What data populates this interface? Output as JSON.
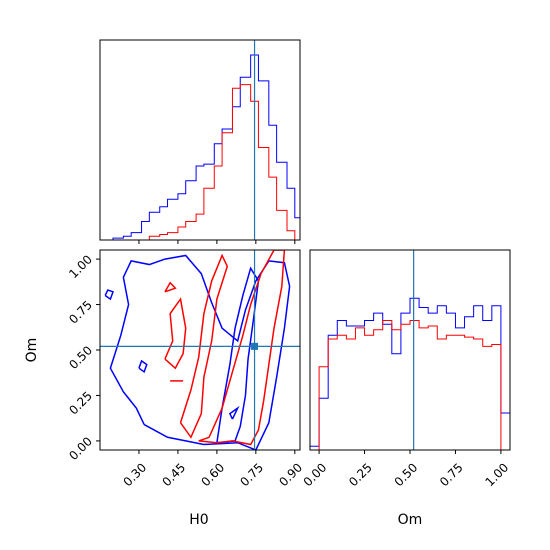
{
  "chart_data": [
    {
      "type": "histogram",
      "panel": "H0-marginal",
      "xlim": [
        0.15,
        0.92
      ],
      "truth": 0.745,
      "series": [
        {
          "name": "",
          "color": "#0000ff",
          "edges": [
            0.17,
            0.2,
            0.24,
            0.27,
            0.31,
            0.34,
            0.38,
            0.41,
            0.45,
            0.48,
            0.52,
            0.55,
            0.59,
            0.62,
            0.66,
            0.69,
            0.73,
            0.76,
            0.8,
            0.83,
            0.87,
            0.9,
            0.92
          ],
          "counts": [
            0.0,
            0.01,
            0.02,
            0.04,
            0.1,
            0.15,
            0.18,
            0.22,
            0.25,
            0.32,
            0.4,
            0.41,
            0.52,
            0.6,
            0.72,
            0.88,
            1.0,
            0.86,
            0.62,
            0.42,
            0.28,
            0.12
          ]
        },
        {
          "name": "",
          "color": "#ff0000",
          "edges": [
            0.17,
            0.2,
            0.24,
            0.27,
            0.31,
            0.34,
            0.38,
            0.41,
            0.45,
            0.48,
            0.52,
            0.55,
            0.59,
            0.62,
            0.66,
            0.69,
            0.73,
            0.76,
            0.8,
            0.83,
            0.87,
            0.9,
            0.92
          ],
          "counts": [
            0.0,
            0.0,
            0.0,
            0.0,
            0.0,
            0.02,
            0.03,
            0.04,
            0.07,
            0.1,
            0.14,
            0.28,
            0.4,
            0.58,
            0.82,
            0.84,
            0.75,
            0.5,
            0.34,
            0.16,
            0.05,
            0.0
          ]
        }
      ]
    },
    {
      "type": "contour",
      "panel": "H0-Om-joint",
      "xlabel": "H0",
      "ylabel": "Om",
      "xlim": [
        0.15,
        0.92
      ],
      "ylim": [
        -0.05,
        1.05
      ],
      "xticks": [
        "0.30",
        "0.45",
        "0.60",
        "0.75",
        "0.90"
      ],
      "xtick_values": [
        0.3,
        0.45,
        0.6,
        0.75,
        0.9
      ],
      "yticks": [
        "0.00",
        "0.25",
        "0.50",
        "0.75",
        "1.00"
      ],
      "ytick_values": [
        0.0,
        0.25,
        0.5,
        0.75,
        1.0
      ],
      "truth": [
        0.745,
        0.52
      ],
      "contours": [
        {
          "color": "#0000ff",
          "points": [
            [
              0.32,
              0.09
            ],
            [
              0.41,
              0.02
            ],
            [
              0.55,
              -0.02
            ],
            [
              0.68,
              -0.01
            ],
            [
              0.75,
              -0.05
            ],
            [
              0.8,
              0.1
            ],
            [
              0.83,
              0.35
            ],
            [
              0.86,
              0.62
            ],
            [
              0.88,
              0.85
            ],
            [
              0.86,
              0.98
            ],
            [
              0.8,
              0.99
            ],
            [
              0.75,
              0.88
            ],
            [
              0.71,
              0.72
            ],
            [
              0.68,
              0.55
            ],
            [
              0.62,
              0.62
            ],
            [
              0.58,
              0.76
            ],
            [
              0.54,
              0.92
            ],
            [
              0.48,
              1.02
            ],
            [
              0.4,
              1.0
            ],
            [
              0.34,
              0.97
            ],
            [
              0.27,
              0.99
            ],
            [
              0.24,
              0.9
            ],
            [
              0.26,
              0.75
            ],
            [
              0.23,
              0.58
            ],
            [
              0.19,
              0.4
            ],
            [
              0.24,
              0.27
            ],
            [
              0.29,
              0.18
            ],
            [
              0.32,
              0.09
            ]
          ]
        },
        {
          "color": "#0000ff",
          "points": [
            [
              0.6,
              -0.01
            ],
            [
              0.62,
              0.18
            ],
            [
              0.65,
              0.42
            ],
            [
              0.67,
              0.62
            ],
            [
              0.7,
              0.8
            ],
            [
              0.73,
              0.95
            ],
            [
              0.76,
              0.88
            ],
            [
              0.74,
              0.66
            ],
            [
              0.72,
              0.45
            ],
            [
              0.71,
              0.25
            ],
            [
              0.69,
              0.08
            ],
            [
              0.67,
              0.0
            ],
            [
              0.6,
              -0.01
            ]
          ]
        },
        {
          "color": "#0000ff",
          "points": [
            [
              0.66,
              0.12
            ],
            [
              0.68,
              0.18
            ],
            [
              0.65,
              0.15
            ],
            [
              0.66,
              0.12
            ]
          ]
        },
        {
          "color": "#0000ff",
          "points": [
            [
              0.3,
              0.4
            ],
            [
              0.32,
              0.38
            ],
            [
              0.33,
              0.42
            ],
            [
              0.31,
              0.44
            ],
            [
              0.3,
              0.4
            ]
          ]
        },
        {
          "color": "#0000ff",
          "points": [
            [
              0.17,
              0.8
            ],
            [
              0.19,
              0.78
            ],
            [
              0.2,
              0.82
            ],
            [
              0.18,
              0.83
            ],
            [
              0.17,
              0.8
            ]
          ]
        },
        {
          "color": "#ff0000",
          "points": [
            [
              0.53,
              0.0
            ],
            [
              0.57,
              0.02
            ],
            [
              0.62,
              0.18
            ],
            [
              0.66,
              0.38
            ],
            [
              0.7,
              0.58
            ],
            [
              0.73,
              0.75
            ],
            [
              0.77,
              0.92
            ],
            [
              0.82,
              1.05
            ],
            [
              0.86,
              1.05
            ],
            [
              0.85,
              0.85
            ],
            [
              0.82,
              0.62
            ],
            [
              0.8,
              0.42
            ],
            [
              0.78,
              0.22
            ],
            [
              0.76,
              0.06
            ],
            [
              0.73,
              -0.02
            ],
            [
              0.66,
              0.0
            ],
            [
              0.6,
              -0.01
            ],
            [
              0.53,
              0.0
            ]
          ]
        },
        {
          "color": "#ff0000",
          "points": [
            [
              0.46,
              0.1
            ],
            [
              0.5,
              0.28
            ],
            [
              0.53,
              0.46
            ],
            [
              0.55,
              0.7
            ],
            [
              0.58,
              0.88
            ],
            [
              0.62,
              1.02
            ],
            [
              0.64,
              0.96
            ],
            [
              0.6,
              0.78
            ],
            [
              0.58,
              0.55
            ],
            [
              0.55,
              0.35
            ],
            [
              0.54,
              0.15
            ],
            [
              0.5,
              0.02
            ],
            [
              0.46,
              0.1
            ]
          ]
        },
        {
          "color": "#ff0000",
          "points": [
            [
              0.4,
              0.45
            ],
            [
              0.43,
              0.55
            ],
            [
              0.42,
              0.7
            ],
            [
              0.46,
              0.78
            ],
            [
              0.48,
              0.62
            ],
            [
              0.47,
              0.48
            ],
            [
              0.44,
              0.4
            ],
            [
              0.4,
              0.45
            ]
          ]
        },
        {
          "color": "#ff0000",
          "points": [
            [
              0.4,
              0.82
            ],
            [
              0.44,
              0.84
            ],
            [
              0.42,
              0.87
            ],
            [
              0.4,
              0.82
            ]
          ]
        },
        {
          "color": "#ff0000",
          "points": [
            [
              0.42,
              0.33
            ],
            [
              0.47,
              0.33
            ]
          ]
        }
      ]
    },
    {
      "type": "histogram",
      "panel": "Om-marginal",
      "xlabel": "Om",
      "xlim": [
        -0.05,
        1.05
      ],
      "xticks": [
        "0.00",
        "0.25",
        "0.50",
        "0.75",
        "1.00"
      ],
      "xtick_values": [
        0.0,
        0.25,
        0.5,
        0.75,
        1.0
      ],
      "truth": 0.52,
      "series": [
        {
          "name": "",
          "color": "#0000ff",
          "edges": [
            -0.05,
            0.0,
            0.05,
            0.1,
            0.15,
            0.2,
            0.25,
            0.3,
            0.35,
            0.4,
            0.45,
            0.5,
            0.55,
            0.6,
            0.65,
            0.7,
            0.75,
            0.8,
            0.85,
            0.9,
            0.95,
            1.0,
            1.05
          ],
          "counts": [
            0.02,
            0.28,
            0.62,
            0.7,
            0.67,
            0.67,
            0.7,
            0.74,
            0.68,
            0.52,
            0.74,
            0.82,
            0.77,
            0.74,
            0.78,
            0.74,
            0.66,
            0.72,
            0.78,
            0.7,
            0.78,
            0.2
          ]
        },
        {
          "name": "",
          "color": "#ff0000",
          "edges": [
            0.0,
            0.05,
            0.1,
            0.15,
            0.2,
            0.25,
            0.3,
            0.35,
            0.4,
            0.45,
            0.5,
            0.55,
            0.6,
            0.65,
            0.7,
            0.75,
            0.8,
            0.85,
            0.9,
            0.95,
            1.0
          ],
          "counts": [
            0.45,
            0.6,
            0.62,
            0.6,
            0.66,
            0.62,
            0.65,
            0.7,
            0.65,
            0.68,
            0.7,
            0.66,
            0.67,
            0.6,
            0.62,
            0.62,
            0.61,
            0.6,
            0.56,
            0.57
          ]
        }
      ]
    }
  ]
}
